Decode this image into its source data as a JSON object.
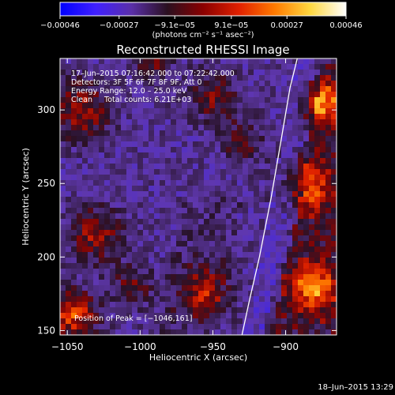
{
  "chart_data": {
    "type": "heatmap",
    "title": "Reconstructed RHESSI Image",
    "xlabel": "Heliocentric X (arcsec)",
    "ylabel": "Heliocentric Y (arcsec)",
    "xlim": [
      -1055,
      -865
    ],
    "ylim": [
      147,
      335
    ],
    "x_ticks": [
      -1050,
      -1000,
      -950,
      -900
    ],
    "x_tick_labels": [
      "−1050",
      "−1000",
      "−950",
      "−900"
    ],
    "y_ticks": [
      150,
      200,
      250,
      300
    ],
    "y_tick_labels": [
      "150",
      "200",
      "250",
      "300"
    ],
    "colorbar": {
      "ticks": [
        -0.00046,
        -0.00027,
        -9.1e-05,
        9.1e-05,
        0.00027,
        0.00046
      ],
      "tick_labels": [
        "−0.00046",
        "−0.00027",
        "−9.1e−05",
        "9.1e−05",
        "0.00027",
        "0.00046"
      ],
      "range": [
        -0.00046,
        0.00046
      ],
      "unit_label": "(photons cm⁻² s⁻¹ asec⁻²)",
      "colors": [
        "#0000ff",
        "#4020ff",
        "#5a2fa8",
        "#2a1020",
        "#8a0000",
        "#e02000",
        "#ff7a00",
        "#ffd840",
        "#ffffff"
      ]
    },
    "annotations": {
      "time_range": "17–Jun–2015 07:16:42.000 to 07:22:42.000",
      "detectors": "Detectors: 3F 5F 6F 7F 8F 9F, Att 0",
      "energy_range": "Energy Range: 12.0 – 25.0 keV",
      "clean_counts": "Clean     Total counts: 6.21E+03",
      "peak": "Position of Peak = [−1046,161]"
    },
    "limb_curve": {
      "x": [
        -930,
        -925,
        -918,
        -910,
        -903,
        -897,
        -892
      ],
      "y": [
        147,
        170,
        200,
        240,
        280,
        315,
        335
      ]
    },
    "peak_position": [
      -1046,
      161
    ]
  },
  "footer": {
    "date": "18–Jun–2015 13:29"
  }
}
